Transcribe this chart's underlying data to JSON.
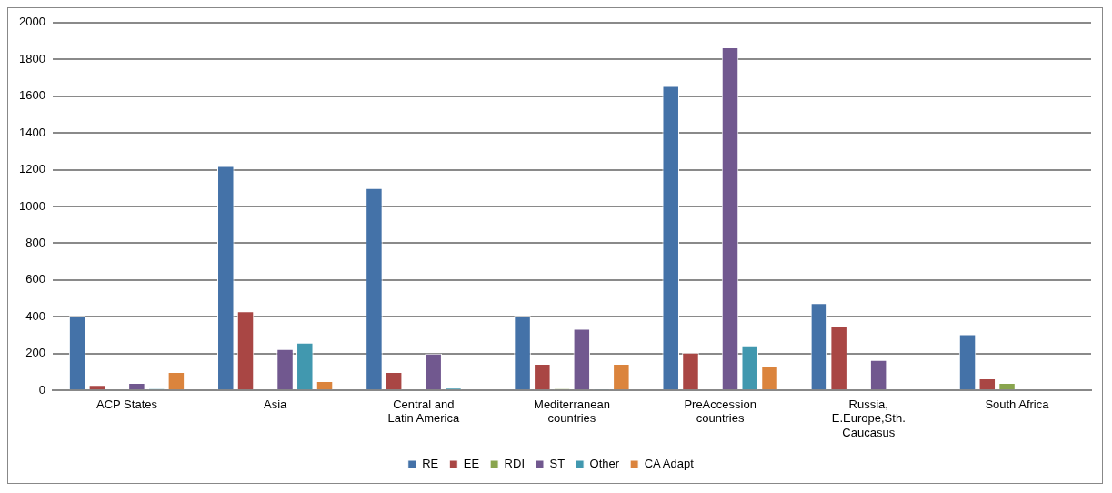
{
  "chart_data": {
    "type": "bar",
    "categories": [
      "ACP States",
      "Asia",
      "Central and Latin America",
      "Mediterranean countries",
      "PreAccession countries",
      "Russia, E.Europe,Sth. Caucasus",
      "South Africa"
    ],
    "series": [
      {
        "name": "RE",
        "color": "#4472a8",
        "values": [
          405,
          1220,
          1100,
          405,
          1655,
          475,
          305
        ]
      },
      {
        "name": "EE",
        "color": "#a94644",
        "values": [
          30,
          430,
          100,
          145,
          205,
          350,
          65
        ]
      },
      {
        "name": "RDI",
        "color": "#89a54e",
        "values": [
          0,
          0,
          0,
          10,
          0,
          0,
          40
        ]
      },
      {
        "name": "ST",
        "color": "#71588f",
        "values": [
          40,
          225,
          200,
          335,
          1865,
          165,
          0
        ]
      },
      {
        "name": "Other",
        "color": "#4198af",
        "values": [
          10,
          260,
          15,
          3,
          245,
          null,
          0
        ]
      },
      {
        "name": "CA Adapt",
        "color": "#db843d",
        "values": [
          100,
          50,
          0,
          145,
          135,
          0,
          0
        ]
      }
    ],
    "ylim": [
      0,
      2000
    ],
    "yticks": [
      0,
      200,
      400,
      600,
      800,
      1000,
      1200,
      1400,
      1600,
      1800,
      2000
    ],
    "grid": "y",
    "legend": "bottom"
  }
}
